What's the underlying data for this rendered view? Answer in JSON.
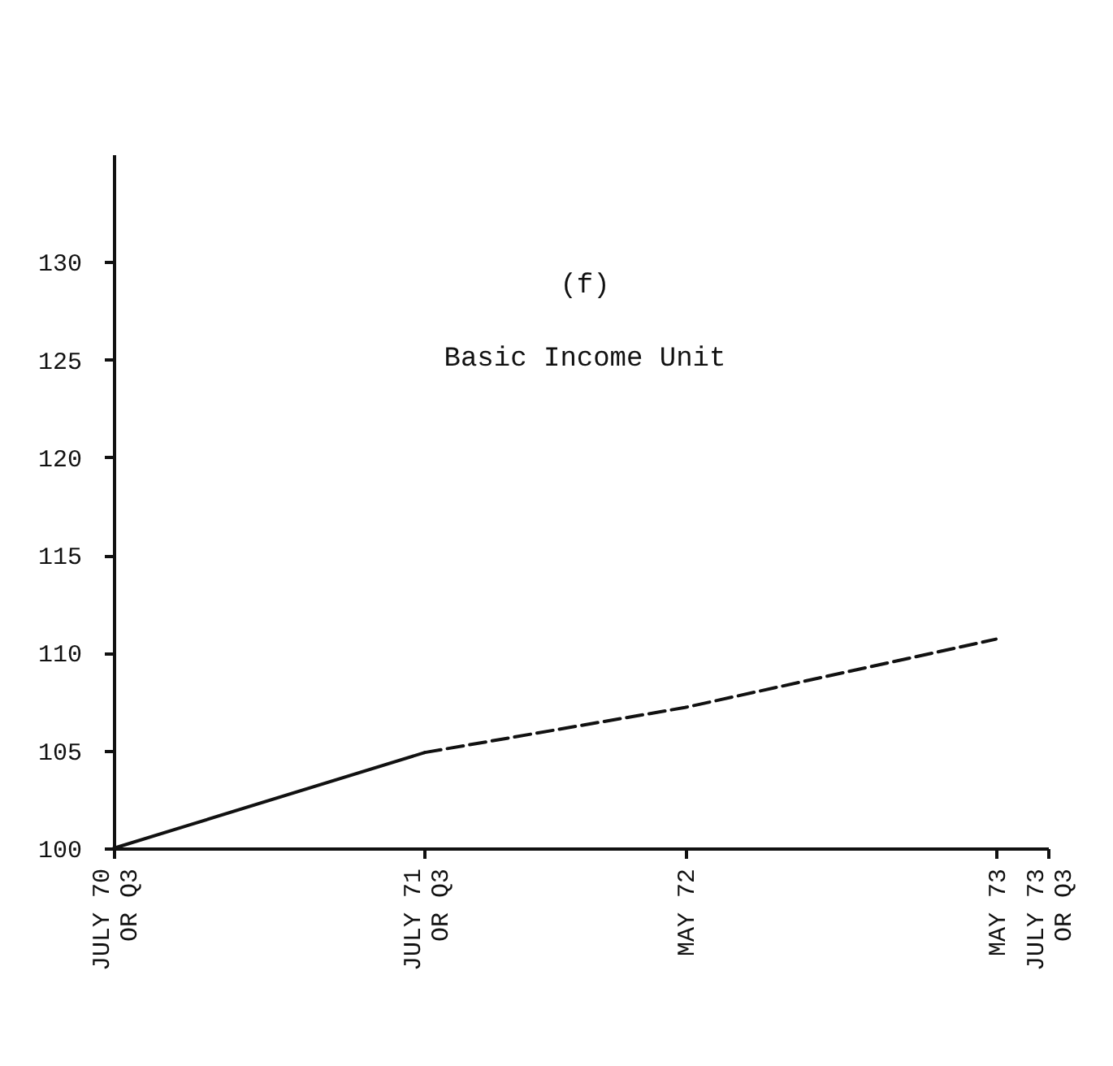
{
  "chart_data": {
    "type": "line",
    "title": "(f)",
    "subtitle": "Basic Income Unit",
    "xlim": [
      "1970-07",
      "1973-07"
    ],
    "xticks": [
      {
        "value": "1970-07",
        "label": "JULY 70\nOR Q3"
      },
      {
        "value": "1971-07",
        "label": "JULY 71\nOR Q3"
      },
      {
        "value": "1972-05",
        "label": "MAY 72"
      },
      {
        "value": "1973-05",
        "label": "MAY 73"
      },
      {
        "value": "1973-07",
        "label": "JULY 73\nOR Q3"
      }
    ],
    "ylim": [
      100,
      135.5
    ],
    "yticks": [
      100,
      105,
      110,
      115,
      120,
      125,
      130
    ],
    "grid": false,
    "series": [
      {
        "color": "#111111",
        "line_style": "solid",
        "x": [
          "1970-07",
          "1971-07"
        ],
        "values": [
          100,
          104.9
        ]
      },
      {
        "color": "#111111",
        "line_style": "dashed",
        "x": [
          "1971-07",
          "1972-05",
          "1973-05"
        ],
        "values": [
          104.9,
          107.2,
          110.7
        ]
      }
    ]
  }
}
